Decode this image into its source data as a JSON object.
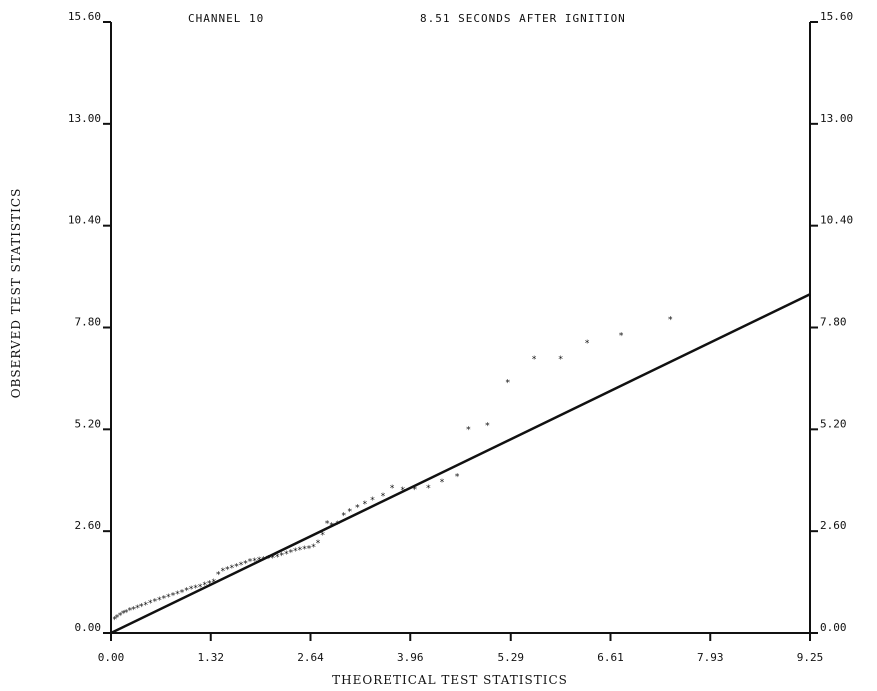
{
  "chart_data": {
    "type": "scatter",
    "title_left": "CHANNEL 10",
    "title_right": "8.51 SECONDS AFTER IGNITION",
    "xlabel": "THEORETICAL TEST STATISTICS",
    "ylabel": "OBSERVED TEST STATISTICS",
    "xlim": [
      0,
      9.25
    ],
    "ylim": [
      0,
      15.6
    ],
    "x_ticks": [
      "0.00",
      "1.32",
      "2.64",
      "3.96",
      "5.29",
      "6.61",
      "7.93",
      "9.25"
    ],
    "y_ticks": [
      "0.00",
      "2.60",
      "5.20",
      "7.80",
      "10.40",
      "13.00",
      "15.60"
    ],
    "grid": false,
    "fit_line": {
      "x": [
        0,
        9.25
      ],
      "y": [
        0,
        8.65
      ]
    },
    "points": {
      "x": [
        0.05,
        0.08,
        0.12,
        0.16,
        0.2,
        0.25,
        0.3,
        0.35,
        0.4,
        0.46,
        0.52,
        0.58,
        0.64,
        0.7,
        0.76,
        0.82,
        0.88,
        0.94,
        1.0,
        1.06,
        1.12,
        1.18,
        1.24,
        1.3,
        1.36,
        1.42,
        1.48,
        1.54,
        1.6,
        1.66,
        1.72,
        1.78,
        1.84,
        1.9,
        1.96,
        2.02,
        2.08,
        2.14,
        2.2,
        2.26,
        2.32,
        2.38,
        2.44,
        2.5,
        2.56,
        2.62,
        2.68,
        2.74,
        2.8,
        2.86,
        2.92,
        3.0,
        3.08,
        3.16,
        3.26,
        3.36,
        3.46,
        3.6,
        3.72,
        3.86,
        4.02,
        4.2,
        4.38,
        4.58,
        4.73,
        4.98,
        5.25,
        5.6,
        5.95,
        6.3,
        6.75,
        7.4
      ],
      "y": [
        0.35,
        0.4,
        0.45,
        0.5,
        0.52,
        0.57,
        0.6,
        0.64,
        0.68,
        0.72,
        0.76,
        0.8,
        0.84,
        0.88,
        0.92,
        0.96,
        1.0,
        1.04,
        1.08,
        1.12,
        1.15,
        1.18,
        1.22,
        1.26,
        1.3,
        1.5,
        1.58,
        1.62,
        1.66,
        1.7,
        1.74,
        1.78,
        1.82,
        1.84,
        1.86,
        1.88,
        1.9,
        1.92,
        1.94,
        1.98,
        2.02,
        2.06,
        2.1,
        2.12,
        2.14,
        2.16,
        2.2,
        2.3,
        2.5,
        2.8,
        2.75,
        2.78,
        3.0,
        3.1,
        3.2,
        3.3,
        3.4,
        3.5,
        3.7,
        3.65,
        3.66,
        3.7,
        3.85,
        4.0,
        5.2,
        5.3,
        6.4,
        7.0,
        7.0,
        7.4,
        7.6,
        8.0
      ]
    }
  }
}
